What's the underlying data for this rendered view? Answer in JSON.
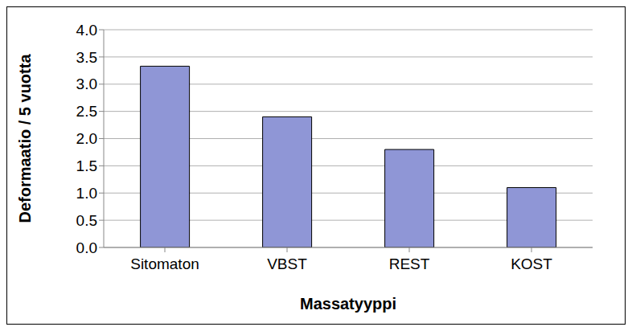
{
  "chart_data": {
    "type": "bar",
    "x_label": "Massatyyppi",
    "y_label": "Deformaatio / 5 vuotta",
    "categories": [
      "Sitomaton",
      "VBST",
      "REST",
      "KOST"
    ],
    "values": [
      3.33,
      2.4,
      1.8,
      1.1
    ],
    "color": "#8f96d6",
    "ylim": [
      0,
      4
    ],
    "yticks": [
      {
        "value": 0,
        "label": "0.0"
      },
      0.5,
      {
        "value": 1,
        "label": "1.0"
      },
      1.5,
      {
        "value": 2,
        "label": "2.0"
      },
      2.5,
      {
        "value": 3,
        "label": "3.0"
      },
      3.5,
      {
        "value": 4,
        "label": "4.0"
      }
    ],
    "grid": true
  }
}
